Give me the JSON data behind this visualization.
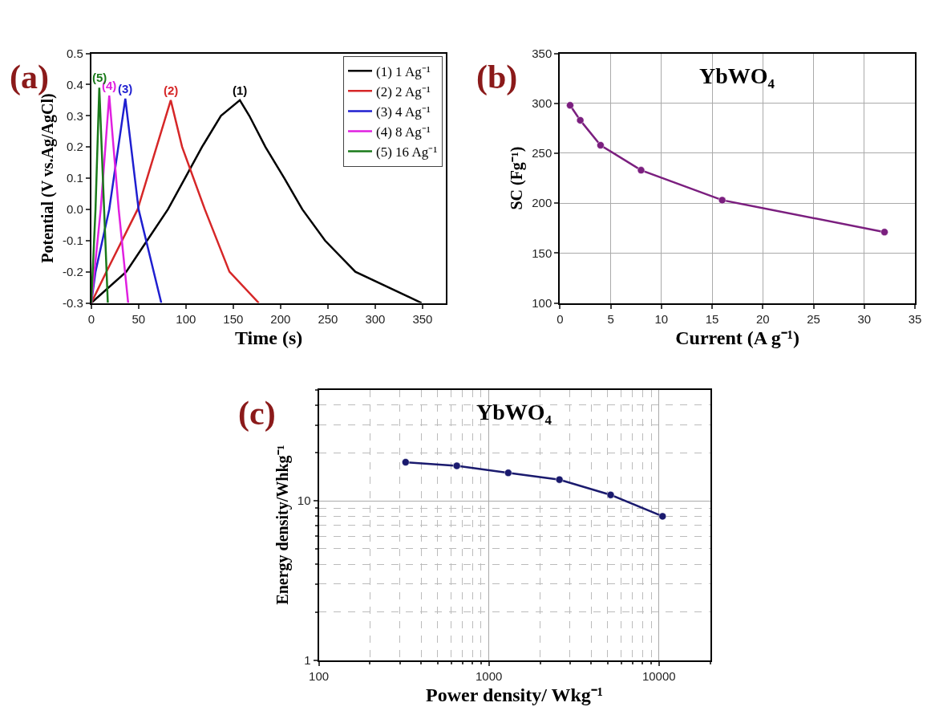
{
  "chart_data": [
    {
      "type": "line",
      "xlabel": "Time (s)",
      "ylabel": "Potential (V vs.Ag/AgCl)",
      "xlim": [
        0,
        375
      ],
      "ylim": [
        -0.3,
        0.5
      ],
      "xticks": [
        0,
        50,
        100,
        150,
        200,
        250,
        300,
        350
      ],
      "yticks": [
        -0.3,
        -0.2,
        -0.1,
        {
          "value": 0,
          "label": "0.0"
        },
        0.1,
        0.2,
        0.3,
        0.4,
        0.5
      ],
      "grid": false,
      "legend": "top right",
      "marker": "none",
      "line_style": "solid",
      "annotations": [
        "(a)",
        {
          "text": "(1)",
          "x": 157,
          "y": 0.35
        },
        {
          "text": "(2)",
          "x": 84,
          "y": 0.35
        },
        {
          "text": "(3)",
          "x": 36,
          "y": 0.355
        },
        {
          "text": "(4)",
          "x": 19,
          "y": 0.365
        },
        {
          "text": "(5)",
          "x": 8.5,
          "y": 0.39
        }
      ],
      "series": [
        {
          "name": "(1) 1 Ag⁻¹",
          "color": "#000000",
          "x": [
            0,
            37,
            59,
            81,
            99,
            117,
            137,
            157,
            167,
            184,
            204,
            223,
            247,
            279,
            349
          ],
          "values": [
            -0.3,
            -0.2,
            -0.1,
            0.0,
            0.1,
            0.2,
            0.3,
            0.35,
            0.3,
            0.2,
            0.1,
            0.0,
            -0.1,
            -0.2,
            -0.3
          ]
        },
        {
          "name": "(2) 2 Ag⁻¹",
          "color": "#d62728",
          "x": [
            0,
            16,
            49,
            69,
            84,
            96,
            120,
            146,
            177
          ],
          "values": [
            -0.3,
            -0.2,
            0.0,
            0.2,
            0.35,
            0.2,
            0.0,
            -0.2,
            -0.3
          ]
        },
        {
          "name": "(3) 4 Ag⁻¹",
          "color": "#1f1fd0",
          "x": [
            0,
            4.5,
            19,
            36,
            50,
            66,
            74
          ],
          "values": [
            -0.3,
            -0.2,
            0.0,
            0.355,
            0.0,
            -0.2,
            -0.3
          ]
        },
        {
          "name": "(4) 8 Ag⁻¹",
          "color": "#e020e0",
          "x": [
            0,
            10,
            19,
            29,
            39
          ],
          "values": [
            -0.3,
            0.0,
            0.365,
            0.0,
            -0.3
          ]
        },
        {
          "name": "(5) 16 Ag⁻¹",
          "color": "#1a7a1a",
          "x": [
            0,
            4.5,
            8.5,
            17.5
          ],
          "values": [
            -0.3,
            0.0,
            0.39,
            -0.3
          ]
        }
      ]
    },
    {
      "type": "line",
      "title": "YbWO₄",
      "xlabel": "Current (A g⁻¹)",
      "ylabel": "SC (Fg⁻¹)",
      "xlim": [
        0,
        35
      ],
      "ylim": [
        100,
        350
      ],
      "xticks": [
        0,
        5,
        10,
        15,
        20,
        25,
        30,
        35
      ],
      "yticks": [
        100,
        150,
        200,
        250,
        300,
        350
      ],
      "grid": true,
      "marker": "circle",
      "line_style": "solid",
      "annotations": [
        "(b)"
      ],
      "series": [
        {
          "color": "#7b1f7f",
          "x": [
            1,
            2,
            4,
            8,
            16,
            32
          ],
          "values": [
            298,
            283,
            258,
            233,
            203,
            171
          ]
        }
      ]
    },
    {
      "type": "line",
      "title": "YbWO₄",
      "xlabel": "Power density/ Wkg⁻¹",
      "ylabel": "Energy density/Whkg⁻¹",
      "log": "xy",
      "xlim": [
        100,
        20000
      ],
      "ylim": [
        1,
        50
      ],
      "xticks": [
        100,
        1000,
        10000
      ],
      "yticks": [
        1,
        10
      ],
      "grid": true,
      "marker": "circle",
      "line_style": "solid",
      "annotations": [
        "(c)"
      ],
      "series": [
        {
          "color": "#1a1a6e",
          "x": [
            324,
            648,
            1300,
            2600,
            5200,
            10500
          ],
          "values": [
            17.5,
            16.6,
            15.0,
            13.6,
            10.9,
            8.0
          ]
        }
      ]
    }
  ]
}
